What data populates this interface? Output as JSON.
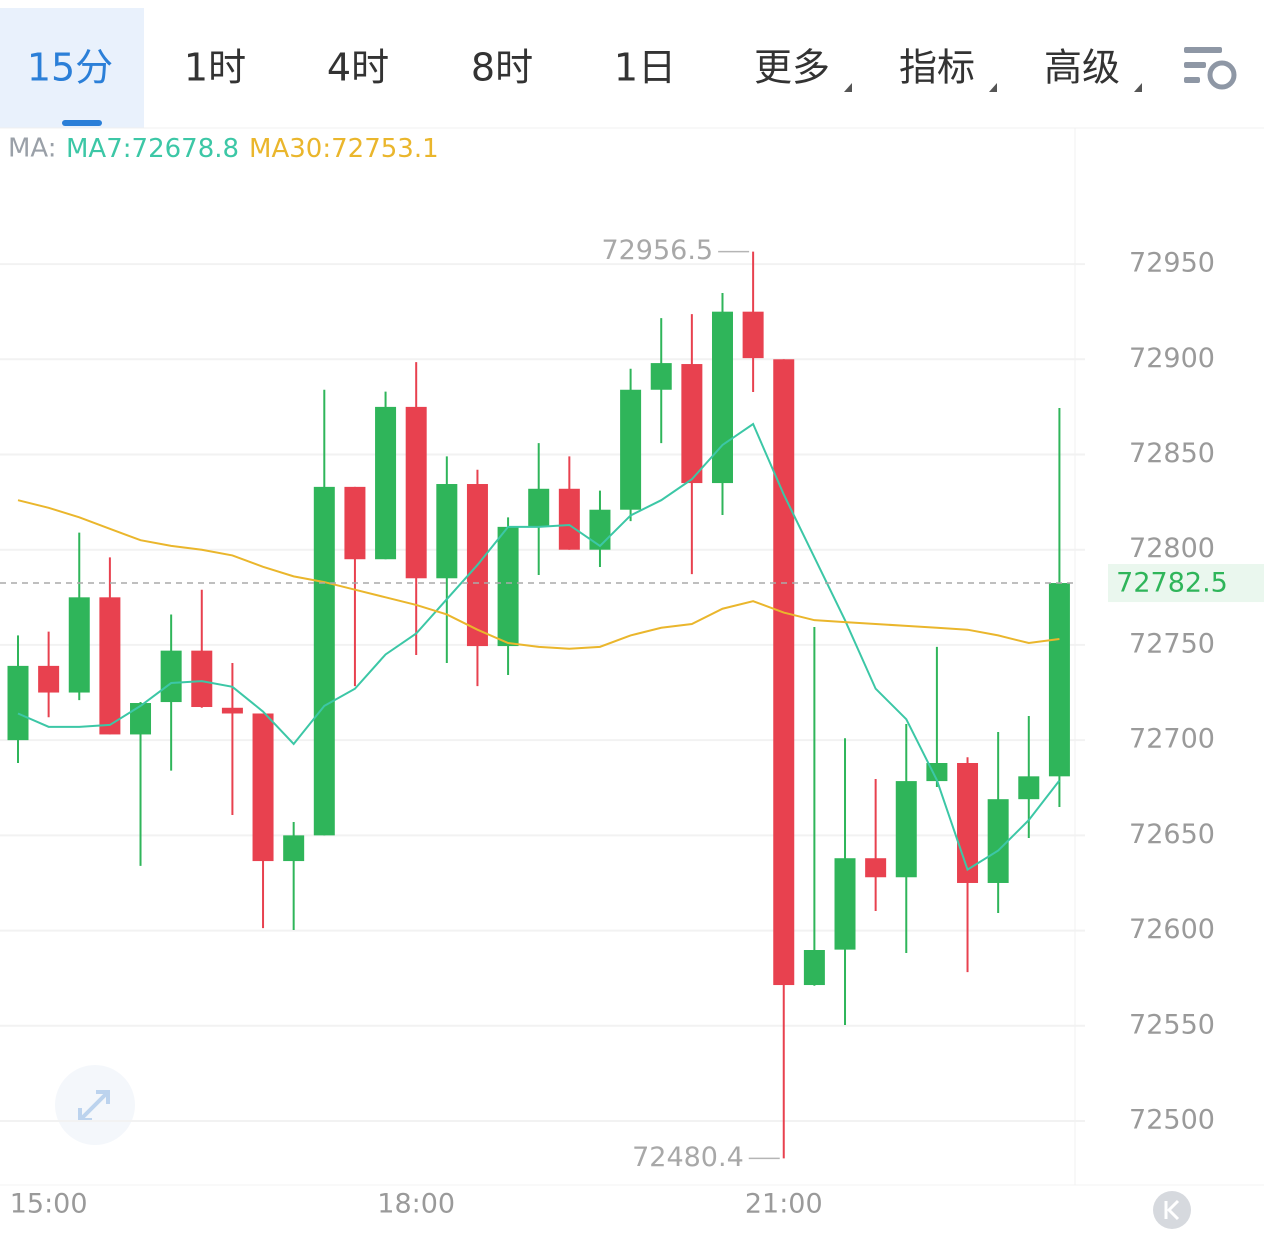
{
  "tabs": [
    "15分",
    "1时",
    "4时",
    "8时",
    "1日",
    "更多",
    "指标",
    "高级"
  ],
  "chart_data": {
    "type": "candlestick",
    "legend_prefix": "MA:",
    "legend_labels": [
      "MA7:72678.8",
      "MA30:72753.1"
    ],
    "categories": [
      null,
      "15:00",
      null,
      null,
      null,
      null,
      null,
      null,
      null,
      null,
      null,
      null,
      null,
      "18:00",
      null,
      null,
      null,
      null,
      null,
      null,
      null,
      null,
      null,
      null,
      null,
      "21:00",
      null,
      null,
      null,
      null,
      null,
      null,
      null,
      null,
      null
    ],
    "open": [
      72700,
      72739,
      72725,
      72775,
      72703,
      72720,
      72747,
      72717,
      72714,
      72636.5,
      72650,
      72833,
      72795,
      72875,
      72785,
      72834.5,
      72749.4,
      72812,
      72832,
      72800,
      72821,
      72884,
      72897.5,
      72835,
      72925,
      72900,
      72571.4,
      72590,
      72638,
      72628,
      72678.5,
      72688,
      72625,
      72669,
      72681
    ],
    "high": [
      72755,
      72757,
      72809,
      72796,
      72720,
      72766,
      72779,
      72740.5,
      72714,
      72657,
      72884,
      72833,
      72883,
      72898.5,
      72849,
      72842,
      72817,
      72856,
      72849,
      72831,
      72895,
      72921.6,
      72923.7,
      72934.8,
      72956.5,
      72900,
      72759.4,
      72701,
      72679.6,
      72708.5,
      72749,
      72691,
      72704.3,
      72712.7,
      72874.4
    ],
    "low": [
      72688,
      72712,
      72721,
      72703,
      72634,
      72684,
      72717,
      72660.7,
      72601.3,
      72600.3,
      72650,
      72728.4,
      72795,
      72744.7,
      72740.5,
      72728.4,
      72734.2,
      72786.7,
      72800,
      72790.9,
      72815,
      72856,
      72787.2,
      72818.2,
      72882.8,
      72480.4,
      72571,
      72550.4,
      72610.3,
      72588.2,
      72675.4,
      72578.2,
      72609.2,
      72648.6,
      72664.9
    ],
    "close": [
      72739,
      72725,
      72775,
      72703,
      72719.5,
      72747,
      72717.4,
      72714,
      72636.5,
      72650,
      72833,
      72795,
      72875,
      72785,
      72834.5,
      72749.4,
      72812,
      72832,
      72800,
      72821,
      72884,
      72898,
      72835,
      72925,
      72900.6,
      72571.4,
      72589.8,
      72638,
      72628,
      72678.5,
      72688,
      72625,
      72669,
      72681,
      72782.5
    ],
    "series": [
      {
        "name": "MA7",
        "color": "#3cc7a6",
        "values": [
          72714,
          72707,
          72707,
          72708,
          72718,
          72730,
          72731,
          72728,
          72715,
          72698,
          72718,
          72727,
          72745,
          72756,
          72774,
          72792,
          72812,
          72812,
          72813,
          72802,
          72818,
          72826,
          72837,
          72855,
          72866,
          72829,
          72796,
          72763,
          72727,
          72711,
          72679,
          72632,
          72642,
          72658,
          72678.8
        ]
      },
      {
        "name": "MA30",
        "color": "#eab62c",
        "values": [
          72826,
          72822,
          72817,
          72811,
          72805,
          72802,
          72800,
          72797,
          72791,
          72786,
          72783,
          72779,
          72775,
          72771,
          72766,
          72758,
          72751,
          72749,
          72748,
          72749,
          72755,
          72759,
          72761,
          72769,
          72773,
          72767,
          72763,
          72762,
          72761,
          72760,
          72759,
          72758,
          72755,
          72751,
          72753.1
        ]
      }
    ],
    "up_color": "#2fb55a",
    "down_color": "#e8414f",
    "ylim": [
      72466.4,
      73020.4
    ],
    "yticks": [
      72500,
      72550,
      72600,
      72650,
      72700,
      72750,
      72800,
      72850,
      72900,
      72950
    ],
    "grid": true
  }
}
